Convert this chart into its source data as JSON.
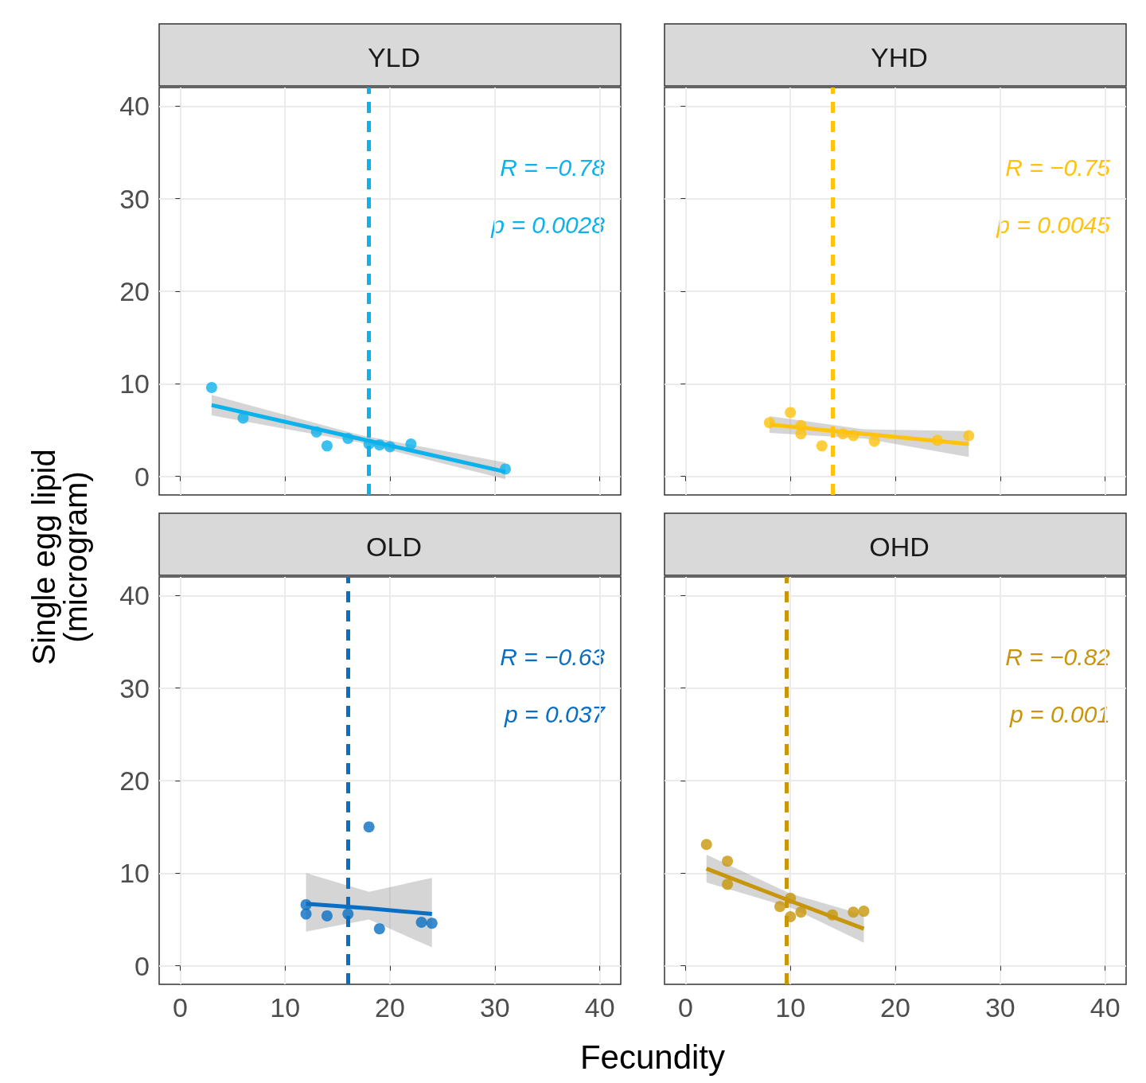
{
  "chart_data": [
    {
      "type": "scatter",
      "title": "YLD",
      "ylabel": "Single egg lipid (microgram)",
      "xlim": [
        -2,
        42
      ],
      "ylim": [
        -2,
        42
      ],
      "xticks": [
        0,
        10,
        20,
        30,
        40
      ],
      "yticks": [
        0,
        10,
        20,
        30,
        40
      ],
      "grid": true,
      "marker": "circle",
      "tick_labels": "y",
      "annotations": [
        "R = −0.78",
        "p = 0.0028"
      ],
      "ref_lines": [
        {
          "axis": "x",
          "value": 18,
          "color": "#0cb2ec",
          "line_style": "dashed"
        }
      ],
      "series": [
        {
          "color": "#0cb2ec",
          "x": [
            3,
            6,
            13,
            14,
            16,
            18,
            19,
            20,
            22,
            31
          ],
          "values": [
            9.6,
            6.3,
            4.8,
            3.3,
            4.1,
            3.5,
            3.4,
            3.2,
            3.5,
            0.8
          ]
        },
        {
          "type": "line",
          "color": "#0cb2ec",
          "marker": "none",
          "x": [
            3,
            17,
            31
          ],
          "values": [
            7.7,
            4.1,
            0.5
          ],
          "lower": [
            6.6,
            3.7,
            -0.3
          ],
          "upper": [
            8.8,
            4.5,
            1.5
          ]
        }
      ]
    },
    {
      "type": "scatter",
      "title": "YHD",
      "xlim": [
        -2,
        42
      ],
      "ylim": [
        -2,
        42
      ],
      "xticks": [
        0,
        10,
        20,
        30,
        40
      ],
      "yticks": [
        0,
        10,
        20,
        30,
        40
      ],
      "grid": true,
      "marker": "circle",
      "tick_labels": false,
      "annotations": [
        "R = −0.75",
        "p = 0.0045"
      ],
      "ref_lines": [
        {
          "axis": "x",
          "value": 14,
          "color": "#ffc20e",
          "line_style": "dashed"
        }
      ],
      "series": [
        {
          "color": "#ffc20e",
          "x": [
            8,
            10,
            11,
            11,
            13,
            15,
            16,
            18,
            24,
            27
          ],
          "values": [
            5.8,
            6.9,
            5.5,
            4.6,
            3.3,
            4.6,
            4.4,
            3.8,
            3.9,
            4.4
          ]
        },
        {
          "type": "line",
          "color": "#ffc20e",
          "marker": "none",
          "x": [
            8,
            17,
            27
          ],
          "values": [
            5.6,
            4.6,
            3.5
          ],
          "lower": [
            4.7,
            4.1,
            2.1
          ],
          "upper": [
            6.5,
            5.1,
            4.9
          ]
        }
      ]
    },
    {
      "type": "scatter",
      "title": "OLD",
      "xlabel": "Fecundity",
      "xlim": [
        -2,
        42
      ],
      "ylim": [
        -2,
        42
      ],
      "xticks": [
        0,
        10,
        20,
        30,
        40
      ],
      "yticks": [
        0,
        10,
        20,
        30,
        40
      ],
      "grid": true,
      "marker": "circle",
      "annotations": [
        "R = −0.63",
        "p = 0.037"
      ],
      "ref_lines": [
        {
          "axis": "x",
          "value": 16,
          "color": "#0a6fc2",
          "line_style": "dashed"
        }
      ],
      "series": [
        {
          "color": "#0a6fc2",
          "x": [
            12,
            12,
            14,
            16,
            18,
            19,
            23,
            24
          ],
          "values": [
            6.6,
            5.6,
            5.4,
            5.6,
            15,
            4,
            4.7,
            4.6
          ]
        },
        {
          "type": "line",
          "color": "#0a6fc2",
          "marker": "none",
          "x": [
            12,
            18,
            24
          ],
          "values": [
            6.7,
            6.2,
            5.6
          ],
          "lower": [
            3.7,
            5,
            2
          ],
          "upper": [
            10,
            8,
            9.5
          ]
        }
      ]
    },
    {
      "type": "scatter",
      "title": "OHD",
      "xlim": [
        -2,
        42
      ],
      "ylim": [
        -2,
        42
      ],
      "xticks": [
        0,
        10,
        20,
        30,
        40
      ],
      "yticks": [
        0,
        10,
        20,
        30,
        40
      ],
      "grid": true,
      "marker": "circle",
      "tick_labels": "x",
      "annotations": [
        "R = −0.82",
        "p = 0.001"
      ],
      "ref_lines": [
        {
          "axis": "x",
          "value": 9.6,
          "color": "#c8960a",
          "line_style": "dashed"
        }
      ],
      "series": [
        {
          "color": "#c8960a",
          "x": [
            2,
            4,
            4,
            9,
            10,
            10,
            11,
            14,
            16,
            17
          ],
          "values": [
            13.1,
            11.3,
            8.8,
            6.4,
            5.3,
            7.3,
            5.8,
            5.5,
            5.8,
            5.9
          ]
        },
        {
          "type": "line",
          "color": "#c8960a",
          "marker": "none",
          "x": [
            2,
            10,
            17
          ],
          "values": [
            10.5,
            7,
            4
          ],
          "lower": [
            9,
            6.3,
            2.5
          ],
          "upper": [
            12,
            7.8,
            5.5
          ]
        }
      ]
    }
  ]
}
